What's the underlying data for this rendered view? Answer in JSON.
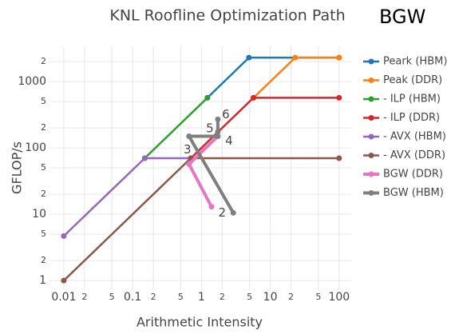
{
  "chart_data": {
    "type": "line",
    "title": "KNL Roofline Optimization Path",
    "subtitle": "BGW",
    "x_label": "Arithmetic Intensity",
    "y_label": "GFLOP/s",
    "xscale": "log",
    "yscale": "log",
    "grid": true,
    "legend": "right",
    "xlim": [
      0.0062,
      150
    ],
    "ylim": [
      0.74,
      3400
    ],
    "xticks": [
      0.01,
      {
        "value": 0.02,
        "label": "2"
      },
      {
        "value": 0.05,
        "label": "5"
      },
      0.1,
      {
        "value": 0.2,
        "label": "2"
      },
      {
        "value": 0.5,
        "label": "5"
      },
      1,
      {
        "value": 2,
        "label": "2"
      },
      {
        "value": 5,
        "label": "5"
      },
      10,
      {
        "value": 20,
        "label": "2"
      },
      {
        "value": 50,
        "label": "5"
      },
      100
    ],
    "yticks": [
      1,
      {
        "value": 2,
        "label": "2"
      },
      {
        "value": 5,
        "label": "5"
      },
      10,
      {
        "value": 20,
        "label": "2"
      },
      {
        "value": 50,
        "label": "5"
      },
      100,
      {
        "value": 200,
        "label": "2"
      },
      {
        "value": 500,
        "label": "5"
      },
      1000,
      {
        "value": 2000,
        "label": "2"
      }
    ],
    "series": [
      {
        "name": "Peark (HBM)",
        "color": "#1f77b4",
        "x": [
          1.22,
          4.9,
          100
        ],
        "values": [
          570,
          2300,
          2300
        ]
      },
      {
        "name": "Peak (DDR)",
        "color": "#ff7f0e",
        "x": [
          5.7,
          23,
          100
        ],
        "values": [
          570,
          2300,
          2300
        ]
      },
      {
        "name": "- ILP (HBM)",
        "color": "#2ca02c",
        "x": [
          0.15,
          1.22
        ],
        "values": [
          70,
          570
        ]
      },
      {
        "name": "- ILP (DDR)",
        "color": "#d62728",
        "x": [
          0.7,
          5.7,
          100
        ],
        "values": [
          70,
          570,
          570
        ]
      },
      {
        "name": "- AVX (HBM)",
        "color": "#9467bd",
        "x": [
          0.01,
          0.15,
          0.7
        ],
        "values": [
          4.7,
          70,
          70
        ]
      },
      {
        "name": "- AVX (DDR)",
        "color": "#8c564b",
        "x": [
          0.01,
          0.7,
          100
        ],
        "values": [
          1,
          70,
          70
        ]
      },
      {
        "name": "BGW (DDR)",
        "color": "#e377c2",
        "x": [
          1.4,
          0.66,
          1.73
        ],
        "values": [
          13,
          57,
          150
        ]
      },
      {
        "name": "BGW (HBM)",
        "color": "#7f7f7f",
        "x": [
          2.9,
          0.66,
          1.73,
          1.73,
          1.73
        ],
        "values": [
          10.5,
          150,
          150,
          175,
          270
        ],
        "labels": [
          "2",
          "3",
          "4",
          "5",
          "6"
        ]
      }
    ]
  }
}
